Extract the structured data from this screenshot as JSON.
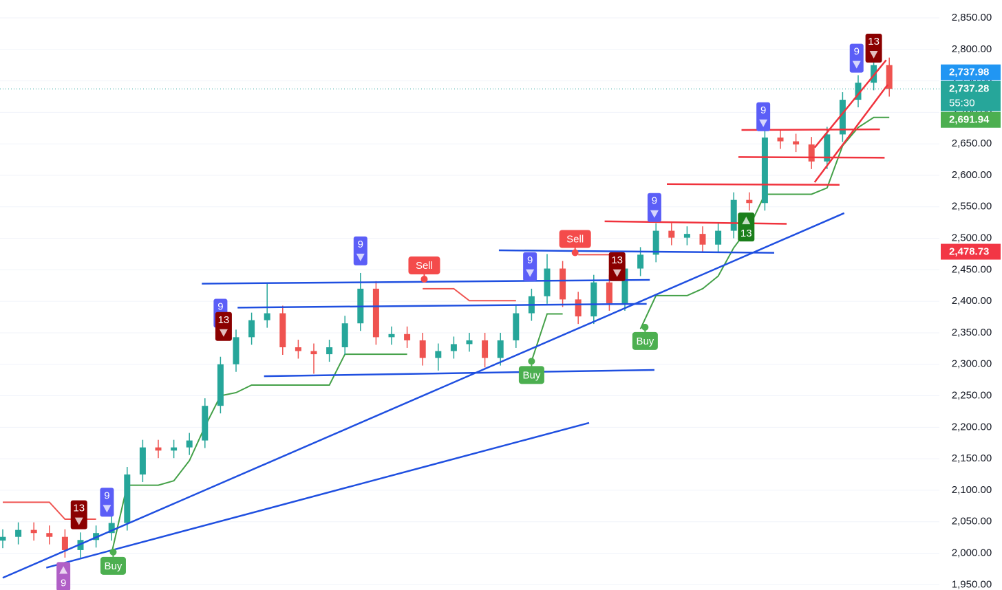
{
  "chart_data": {
    "type": "candlestick",
    "up_color": "#26a69a",
    "down_color": "#ef5350",
    "categories": [
      null,
      null,
      null,
      null,
      null,
      null,
      null,
      null,
      null,
      null,
      null,
      null,
      null,
      null,
      null,
      null,
      null,
      null,
      null,
      null,
      null,
      null,
      null,
      null,
      null,
      null,
      null,
      null,
      null,
      null,
      null,
      null,
      null,
      null,
      null,
      null,
      null,
      null,
      null,
      null,
      null,
      null,
      null,
      null,
      null,
      null,
      null,
      null,
      null,
      null,
      null,
      null,
      null,
      null,
      null,
      null,
      null,
      null
    ],
    "open": [
      2020,
      2026,
      2037,
      2032,
      2026,
      2005,
      2021,
      2032,
      2048,
      2125,
      2168,
      2163,
      2168,
      2179,
      2234,
      2300,
      2343,
      2370,
      2381,
      2327,
      2321,
      2316,
      2327,
      2365,
      2420,
      2343,
      2348,
      2338,
      2310,
      2321,
      2332,
      2338,
      2310,
      2338,
      2381,
      2408,
      2452,
      2403,
      2376,
      2430,
      2397,
      2452,
      2474,
      2512,
      2501,
      2507,
      2490,
      2512,
      2561,
      2556,
      2660,
      2654,
      2649,
      2622,
      2665,
      2720,
      2747,
      2775
    ],
    "high": [
      2038,
      2049,
      2049,
      2044,
      2038,
      2033,
      2044,
      2060,
      2137,
      2180,
      2180,
      2180,
      2191,
      2246,
      2312,
      2355,
      2382,
      2430,
      2393,
      2339,
      2333,
      2339,
      2377,
      2445,
      2432,
      2360,
      2360,
      2350,
      2333,
      2344,
      2350,
      2350,
      2350,
      2393,
      2420,
      2475,
      2464,
      2415,
      2442,
      2442,
      2464,
      2486,
      2524,
      2524,
      2519,
      2519,
      2524,
      2573,
      2573,
      2672,
      2672,
      2666,
      2661,
      2677,
      2732,
      2759,
      2787,
      2787
    ],
    "low": [
      2008,
      2014,
      2020,
      2014,
      1993,
      1993,
      2009,
      2020,
      2036,
      2113,
      2151,
      2151,
      2156,
      2167,
      2222,
      2288,
      2331,
      2358,
      2315,
      2309,
      2285,
      2304,
      2315,
      2353,
      2331,
      2331,
      2326,
      2298,
      2290,
      2309,
      2320,
      2295,
      2298,
      2326,
      2369,
      2396,
      2391,
      2364,
      2364,
      2385,
      2385,
      2440,
      2462,
      2489,
      2489,
      2478,
      2478,
      2500,
      2544,
      2544,
      2642,
      2637,
      2610,
      2610,
      2653,
      2708,
      2735,
      2725
    ],
    "close": [
      2026,
      2037,
      2032,
      2026,
      2005,
      2021,
      2032,
      2048,
      2125,
      2168,
      2163,
      2168,
      2179,
      2234,
      2300,
      2343,
      2370,
      2381,
      2327,
      2321,
      2316,
      2327,
      2365,
      2420,
      2343,
      2348,
      2338,
      2310,
      2321,
      2332,
      2338,
      2310,
      2338,
      2381,
      2408,
      2452,
      2403,
      2376,
      2430,
      2397,
      2452,
      2474,
      2512,
      2501,
      2507,
      2490,
      2512,
      2561,
      2556,
      2660,
      2654,
      2649,
      2622,
      2665,
      2720,
      2747,
      2775,
      2737.28
    ],
    "supertrend_up": {
      "color": "#43a047",
      "values": [
        null,
        null,
        null,
        null,
        null,
        null,
        null,
        2000,
        2108,
        2108,
        2108,
        2115,
        2147,
        2201,
        2250,
        2255,
        2267,
        2267,
        2267,
        2267,
        2267,
        2267,
        2316,
        2316,
        2316,
        2316,
        2316,
        null,
        null,
        null,
        null,
        null,
        null,
        null,
        2305,
        2380,
        2380,
        null,
        null,
        null,
        null,
        2356,
        2409,
        2409,
        2409,
        2420,
        2440,
        2485,
        2518,
        2570,
        2570,
        2570,
        2570,
        2580,
        2647,
        2676,
        2691.94,
        2691.94
      ]
    },
    "supertrend_down": {
      "color": "#ef5350",
      "values": [
        2081,
        2081,
        2081,
        2081,
        2054,
        2054,
        2054,
        null,
        null,
        null,
        null,
        null,
        null,
        null,
        null,
        null,
        null,
        null,
        null,
        null,
        null,
        null,
        null,
        null,
        null,
        null,
        null,
        2420,
        2420,
        2420,
        2401,
        2401,
        2401,
        2401,
        null,
        null,
        null,
        2474,
        2474,
        2474,
        2474,
        null,
        null,
        null,
        null,
        null,
        null,
        null,
        null,
        null,
        null,
        null,
        null,
        null,
        null,
        null,
        null,
        null
      ]
    },
    "trend_lines": [
      {
        "color": "#1f4fe0",
        "points": [
          [
            0,
            1961
          ],
          [
            54.1,
            2540
          ]
        ]
      },
      {
        "color": "#1f4fe0",
        "points": [
          [
            2.8,
            1977
          ],
          [
            37.7,
            2207
          ]
        ]
      },
      {
        "color": "#1f4fe0",
        "points": [
          [
            12.8,
            2428
          ],
          [
            41.6,
            2434
          ]
        ]
      },
      {
        "color": "#1f4fe0",
        "points": [
          [
            15.1,
            2390
          ],
          [
            41.4,
            2396
          ]
        ]
      },
      {
        "color": "#1f4fe0",
        "points": [
          [
            16.8,
            2281
          ],
          [
            41.9,
            2291
          ]
        ]
      },
      {
        "color": "#1f4fe0",
        "points": [
          [
            31.9,
            2481
          ],
          [
            49.6,
            2477
          ]
        ]
      },
      {
        "color": "#f0323c",
        "points": [
          [
            38.7,
            2527
          ],
          [
            50.4,
            2523
          ]
        ]
      },
      {
        "color": "#f0323c",
        "points": [
          [
            42.7,
            2586
          ],
          [
            53.8,
            2585
          ]
        ]
      },
      {
        "color": "#f0323c",
        "points": [
          [
            47.5,
            2672
          ],
          [
            56.4,
            2673
          ]
        ]
      },
      {
        "color": "#f0323c",
        "points": [
          [
            47.3,
            2629
          ],
          [
            56.7,
            2628
          ]
        ]
      },
      {
        "color": "#f0323c",
        "points": [
          [
            52.2,
            2644
          ],
          [
            56.8,
            2783
          ]
        ]
      },
      {
        "color": "#f0323c",
        "points": [
          [
            52.2,
            2589
          ],
          [
            56.9,
            2744
          ]
        ]
      }
    ],
    "markers": [
      {
        "label": "9",
        "index": 6.7,
        "price": 2081,
        "color": "#5b5ef7",
        "dir": "down"
      },
      {
        "label": "13",
        "index": 4.9,
        "price": 2061,
        "color": "#8b0000",
        "dir": "down"
      },
      {
        "label": "9",
        "index": 14.0,
        "price": 2381,
        "color": "#5b5ef7",
        "dir": "down"
      },
      {
        "label": "13",
        "index": 14.2,
        "price": 2360,
        "color": "#8b0000",
        "dir": "down"
      },
      {
        "label": "9",
        "index": 23.0,
        "price": 2480,
        "color": "#5b5ef7",
        "dir": "down"
      },
      {
        "label": "9",
        "index": 33.9,
        "price": 2455,
        "color": "#5b5ef7",
        "dir": "down"
      },
      {
        "label": "13",
        "index": 39.5,
        "price": 2455,
        "color": "#8b0000",
        "dir": "down"
      },
      {
        "label": "9",
        "index": 41.9,
        "price": 2549,
        "color": "#5b5ef7",
        "dir": "down"
      },
      {
        "label": "9",
        "index": 48.9,
        "price": 2693,
        "color": "#5b5ef7",
        "dir": "down"
      },
      {
        "label": "9",
        "index": 54.9,
        "price": 2786,
        "color": "#5b5ef7",
        "dir": "down"
      },
      {
        "label": "13",
        "index": 56.0,
        "price": 2802,
        "color": "#8b0000",
        "dir": "down"
      },
      {
        "label": "13",
        "index": 47.8,
        "price": 2518,
        "color": "#1b7f1b",
        "dir": "up"
      },
      {
        "label": "9",
        "index": 3.9,
        "price": 1963,
        "color": "#b05fc6",
        "dir": "up"
      }
    ],
    "signals": [
      {
        "label": "Buy",
        "index": 7.1,
        "price": 1980,
        "color": "#4caf50",
        "dir": "up"
      },
      {
        "label": "Buy",
        "index": 34.0,
        "price": 2283,
        "color": "#4caf50",
        "dir": "up"
      },
      {
        "label": "Buy",
        "index": 41.3,
        "price": 2337,
        "color": "#4caf50",
        "dir": "up"
      },
      {
        "label": "Sell",
        "index": 27.1,
        "price": 2457,
        "color": "#f44b4b",
        "dir": "down"
      },
      {
        "label": "Sell",
        "index": 36.8,
        "price": 2499,
        "color": "#f44b4b",
        "dir": "down"
      }
    ],
    "price_tags": [
      {
        "value": 2737.28,
        "label": "2,737.28",
        "color": "#26a69a",
        "countdown": "55:30"
      },
      {
        "value": 2737.98,
        "label": "2,737.98",
        "color": "#2196f3"
      },
      {
        "value": 2691.94,
        "label": "2,691.94",
        "color": "#4caf50"
      },
      {
        "value": 2478.73,
        "label": "2,478.73",
        "color": "#f23645"
      }
    ],
    "ylim": [
      1941.6,
      2878.4
    ],
    "yticks": [
      {
        "value": 1950,
        "label": "1,950.00"
      },
      {
        "value": 2000,
        "label": "2,000.00"
      },
      {
        "value": 2050,
        "label": "2,050.00"
      },
      {
        "value": 2100,
        "label": "2,100.00"
      },
      {
        "value": 2150,
        "label": "2,150.00"
      },
      {
        "value": 2200,
        "label": "2,200.00"
      },
      {
        "value": 2250,
        "label": "2,250.00"
      },
      {
        "value": 2300,
        "label": "2,300.00"
      },
      {
        "value": 2350,
        "label": "2,350.00"
      },
      {
        "value": 2400,
        "label": "2,400.00"
      },
      {
        "value": 2450,
        "label": "2,450.00"
      },
      {
        "value": 2500,
        "label": "2,500.00"
      },
      {
        "value": 2550,
        "label": "2,550.00"
      },
      {
        "value": 2600,
        "label": "2,600.00"
      },
      {
        "value": 2650,
        "label": "2,650.00"
      },
      {
        "value": 2700,
        "label": "2,700.00"
      },
      {
        "value": 2750,
        "label": "2,750.00"
      },
      {
        "value": 2800,
        "label": "2,800.00"
      },
      {
        "value": 2850,
        "label": "2,850.00"
      }
    ],
    "grid": true
  }
}
